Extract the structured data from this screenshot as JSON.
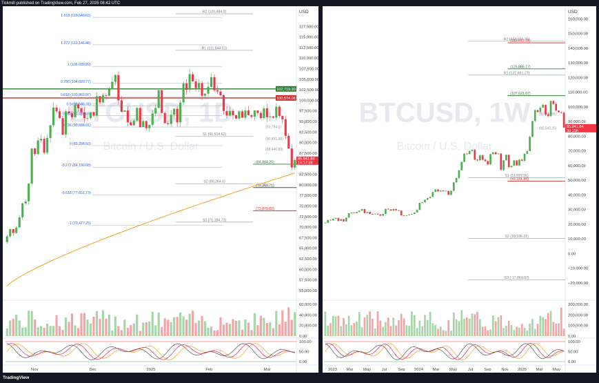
{
  "header": {
    "text": "Tickmill published on TradingView.com, Feb 27, 2025 08:42 UTC"
  },
  "footer": {
    "logo_text": "TradingView"
  },
  "colors": {
    "up": "#4caf50",
    "down": "#f23645",
    "ma": "#f7a21b",
    "fib": "#b2b5be",
    "green_line": "#2e7d32",
    "red_line": "#d32f2f",
    "profile_up": "#7fc48a",
    "profile_down": "#f58a8a",
    "accent_blue": "#2962ff"
  },
  "chart_data": [
    {
      "type": "candlestick",
      "symbol_watermark": "BTCUSD, 1D",
      "subtitle_watermark": "Bitcoin / U.S. Dollar",
      "currency": "USD",
      "ylim": [
        54000,
        120000
      ],
      "y_ticks": [
        "117,500.00",
        "115,000.00",
        "112,500.00",
        "110,000.00",
        "107,500.00",
        "105,000.00",
        "102,500.00",
        "100,000.00",
        "97,500.00",
        "95,000.00",
        "92,500.00",
        "90,000.00",
        "87,500.00",
        "85,000.00",
        "82,500.00",
        "80,000.00",
        "77,500.00",
        "75,000.00",
        "72,500.00",
        "70,000.00",
        "67,500.00",
        "65,000.00",
        "62,500.00",
        "60,000.00",
        "57,500.00",
        "55,000.00"
      ],
      "x_labels": [
        "Nov",
        "Dec",
        "2025",
        "Feb",
        "Mar"
      ],
      "fib_levels": [
        {
          "label": "1.618 (119,646.63)",
          "value": 119646
        },
        {
          "label": "1.272 (113,146.48)",
          "value": 113146
        },
        {
          "label": "1 (108,039.99)",
          "value": 108040
        },
        {
          "label": "0.786 (104,020.77)",
          "value": 104020
        },
        {
          "label": "0.618 (100,863.97)",
          "value": 100864
        },
        {
          "label": "0.5 (98,646.31)",
          "value": 98646
        },
        {
          "label": "0.382 (96,428.65)",
          "value": 96428
        },
        {
          "label": "0.236 (93,688.91)",
          "value": 93689
        },
        {
          "label": "0 (89,288.60)",
          "value": 89288
        },
        {
          "label": "-0.272 (84,190.08)",
          "value": 84190
        },
        {
          "label": "-0.618 (77,651.73)",
          "value": 77651
        },
        {
          "label": "-1 (70,477.25)",
          "value": 70477
        }
      ],
      "pivot_levels": [
        {
          "label": "R2 (120,484.2)",
          "value": 120484
        },
        {
          "label": "R1 (111,844.51)",
          "value": 111844
        },
        {
          "label": "S1 (91,514.62)",
          "value": 91514
        },
        {
          "label": "S2 (80,264.6)",
          "value": 80264
        },
        {
          "label": "S3 (71,184.73)",
          "value": 71184
        }
      ],
      "horizontal_lines": [
        {
          "label": "102,719.30",
          "value": 102719,
          "color": "green"
        },
        {
          "label": "100,574.06",
          "value": 100574,
          "color": "red"
        },
        {
          "label": "(84,884.25)",
          "value": 84884,
          "color": "green"
        },
        {
          "label": "(79,359.71)",
          "value": 79359,
          "color": "dark"
        },
        {
          "label": "(73,870.83)",
          "value": 73870,
          "color": "red"
        }
      ],
      "extra_labels": [
        "(93,794.1)",
        "(90,891.96)",
        "(88,440.89)"
      ],
      "price_tag": {
        "price": "85,941.84",
        "countdown": "15:17:38"
      },
      "closes": [
        67800,
        69500,
        68600,
        69900,
        72300,
        75600,
        76100,
        80300,
        88600,
        87300,
        90500,
        90900,
        87600,
        91100,
        94100,
        98300,
        97400,
        95800,
        91900,
        97400,
        96900,
        96000,
        99000,
        98100,
        97200,
        95800,
        95800,
        97200,
        96400,
        101000,
        99500,
        101200,
        101100,
        102600,
        104400,
        106000,
        100000,
        97300,
        97600,
        94800,
        94100,
        95200,
        98200,
        93700,
        95100,
        93400,
        94200,
        96900,
        98200,
        102400,
        97000,
        94600,
        94400,
        96600,
        98000,
        94800,
        99500,
        104000,
        102500,
        106200,
        104500,
        102900,
        104100,
        101100,
        101600,
        103200,
        105500,
        102400,
        102100,
        101200,
        97500,
        96400,
        97500,
        96500,
        95700,
        97400,
        95900,
        97600,
        96500,
        96100,
        97600,
        97000,
        95800,
        98100,
        96000,
        96200,
        95900,
        98500,
        96300,
        95500,
        91600,
        88600,
        84100,
        85900
      ],
      "ma_from": 56000,
      "ma_to": 82800,
      "volume_ticks": [
        "60,000.00",
        "40,000.00",
        "20,000.00",
        "0.00"
      ],
      "oscillator_ticks": [
        "100.00",
        "50.00",
        "0.00"
      ]
    },
    {
      "type": "candlestick",
      "symbol_watermark": "BTCUSD, 1W",
      "subtitle_watermark": "Bitcoin / U.S. Dollar",
      "currency": "USD",
      "ylim": [
        -28000,
        162000
      ],
      "y_ticks": [
        "160,000.00",
        "150,000.00",
        "140,000.00",
        "130,000.00",
        "120,000.00",
        "110,000.00",
        "100,000.00",
        "90,000.00",
        "80,000.00",
        "70,000.00",
        "60,000.00",
        "50,000.00",
        "40,000.00",
        "30,000.00",
        "20,000.00",
        "10,000.00",
        "0.00",
        "−10,000.00",
        "−20,000.00"
      ],
      "x_labels": [
        "2023",
        "Mar",
        "May",
        "Jul",
        "Sep",
        "2024",
        "Mar",
        "May",
        "Jul",
        "Sep",
        "Nov",
        "2025",
        "Mar",
        "May"
      ],
      "pivot_levels": [
        {
          "label": "R2 (144,656.35)",
          "value": 144656
        },
        {
          "label": "R1 (121,661.27)",
          "value": 121661
        },
        {
          "label": "S1 (51,697.56)",
          "value": 51697
        },
        {
          "label": "S2 (10,336.31)",
          "value": 10336
        },
        {
          "label": "S3 (-17,860.87)",
          "value": -17860
        }
      ],
      "horizontal_lines": [
        {
          "label": "(143,612.23)",
          "value": 143612,
          "color": "red"
        },
        {
          "label": "(125,865.17)",
          "value": 125865,
          "color": "green"
        },
        {
          "label": "(107,621.67)",
          "value": 107621,
          "color": "green"
        },
        {
          "label": "(49,331.88)",
          "value": 49331,
          "color": "red"
        }
      ],
      "extra_labels": [
        "(95,201.95)",
        "(85,542.25)"
      ],
      "price_tag": {
        "price": "85,941.84",
        "countdown": "3d 15h"
      },
      "closes": [
        21000,
        23000,
        22600,
        23700,
        24300,
        22200,
        23500,
        21900,
        24500,
        27500,
        28000,
        27600,
        28400,
        29200,
        30300,
        27600,
        28400,
        27000,
        26900,
        27200,
        26700,
        25800,
        27000,
        30500,
        30100,
        29300,
        30300,
        29500,
        29200,
        26000,
        25900,
        26100,
        26600,
        27000,
        28000,
        29800,
        34500,
        35000,
        36700,
        37800,
        38700,
        42000,
        43700,
        42300,
        43000,
        42500,
        42700,
        40000,
        42800,
        48500,
        51500,
        56800,
        62500,
        68200,
        67800,
        69900,
        70700,
        64000,
        63500,
        66900,
        64000,
        63000,
        60800,
        67800,
        69000,
        67700,
        68200,
        57000,
        63500,
        67300,
        58900,
        59800,
        63500,
        60100,
        64000,
        63200,
        68000,
        69900,
        79600,
        90400,
        97800,
        96500,
        99500,
        101400,
        94800,
        93700,
        104000,
        102000,
        97500,
        96300,
        96000,
        85900
      ],
      "volume_ticks": [
        "300,000.00",
        "200,000.00",
        "100,000.00",
        "0.00"
      ],
      "oscillator_ticks": [
        "100.00",
        "50.00",
        "0.00"
      ]
    }
  ]
}
